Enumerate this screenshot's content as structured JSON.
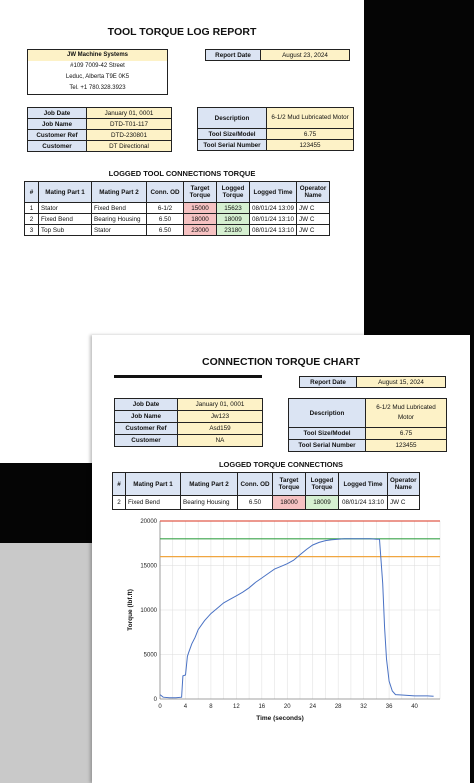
{
  "report1": {
    "title": "TOOL TORQUE LOG REPORT",
    "company": {
      "name": "JW Machine Systems",
      "address1": "#109 7009-42 Street",
      "address2": "Leduc, Alberta T9E 0K5",
      "phone": "Tel. +1 780.328.3923"
    },
    "report_date_label": "Report Date",
    "report_date": "August 23, 2024",
    "job": [
      {
        "label": "Job Date",
        "value": "January 01, 0001"
      },
      {
        "label": "Job Name",
        "value": "DTD-T01-117"
      },
      {
        "label": "Customer Ref",
        "value": "DTD-230801"
      },
      {
        "label": "Customer",
        "value": "DT Directional"
      }
    ],
    "tool": [
      {
        "label": "Description",
        "value": "6-1/2 Mud Lubricated Motor"
      },
      {
        "label": "Tool Size/Model",
        "value": "6.75"
      },
      {
        "label": "Tool Serial Number",
        "value": "123455"
      }
    ],
    "section_title": "LOGGED TOOL CONNECTIONS TORQUE",
    "columns": [
      "#",
      "Mating Part 1",
      "Mating Part 2",
      "Conn. OD",
      "Target Torque",
      "Logged Torque",
      "Logged Time",
      "Operator Name"
    ],
    "rows": [
      [
        "1",
        "Stator",
        "Fixed Bend",
        "6-1/2",
        "15000",
        "15623",
        "08/01/24 13:09",
        "JW C"
      ],
      [
        "2",
        "Fixed Bend",
        "Bearing Housing",
        "6.50",
        "18000",
        "18009",
        "08/01/24 13:10",
        "JW C"
      ],
      [
        "3",
        "Top Sub",
        "Stator",
        "6.50",
        "23000",
        "23180",
        "08/01/24 13:10",
        "JW C"
      ]
    ]
  },
  "report2": {
    "title": "CONNECTION TORQUE CHART",
    "report_date_label": "Report Date",
    "report_date": "August 15, 2024",
    "job": [
      {
        "label": "Job Date",
        "value": "January 01, 0001"
      },
      {
        "label": "Job Name",
        "value": "Jw123"
      },
      {
        "label": "Customer Ref",
        "value": "Asd159"
      },
      {
        "label": "Customer",
        "value": "NA"
      }
    ],
    "tool": [
      {
        "label": "Description",
        "value": "6-1/2 Mud Lubricated Motor"
      },
      {
        "label": "Tool Size/Model",
        "value": "6.75"
      },
      {
        "label": "Tool Serial Number",
        "value": "123455"
      }
    ],
    "section_title": "LOGGED TORQUE CONNECTIONS",
    "columns": [
      "#",
      "Mating Part 1",
      "Mating Part 2",
      "Conn. OD",
      "Target Torque",
      "Logged Torque",
      "Logged Time",
      "Operator Name"
    ],
    "rows": [
      [
        "2",
        "Fixed Bend",
        "Bearing Housing",
        "6.50",
        "18000",
        "18009",
        "08/01/24 13:10",
        "JW C"
      ]
    ]
  },
  "chart_data": {
    "type": "line",
    "title": "",
    "xlabel": "Time (seconds)",
    "ylabel": "Torque (lbf.ft)",
    "xlim": [
      0,
      44
    ],
    "ylim": [
      0,
      20000
    ],
    "xticks": [
      0,
      4,
      8,
      12,
      16,
      20,
      24,
      28,
      32,
      36,
      40
    ],
    "yticks": [
      0,
      5000,
      10000,
      15000,
      20000
    ],
    "grid": true,
    "reference_lines": [
      {
        "value": 20000,
        "color": "#e05a4a"
      },
      {
        "value": 18000,
        "color": "#3aa34a"
      },
      {
        "value": 16000,
        "color": "#f0a640"
      }
    ],
    "series": [
      {
        "color": "#4a72c4",
        "x": [
          0,
          0.5,
          1.5,
          2.5,
          3.4,
          3.6,
          4,
          4.3,
          4.5,
          5,
          5.5,
          6,
          7,
          8,
          9,
          10,
          11,
          12,
          13,
          14,
          15,
          16,
          17,
          18,
          19,
          20,
          21,
          22,
          23,
          24,
          25,
          26,
          27,
          28,
          29,
          30,
          31,
          32,
          33,
          34,
          34.5,
          35,
          35.3,
          35.6,
          36,
          36.5,
          37,
          38,
          40,
          42,
          43
        ],
        "y": [
          500,
          200,
          150,
          150,
          200,
          2600,
          2700,
          4800,
          5200,
          6200,
          6900,
          7800,
          8800,
          9600,
          10200,
          10800,
          11200,
          11600,
          12000,
          12500,
          13100,
          13600,
          14100,
          14600,
          14900,
          15200,
          15600,
          16200,
          16800,
          17300,
          17600,
          17800,
          17900,
          17950,
          18000,
          18009,
          18000,
          18000,
          18000,
          17950,
          17950,
          13000,
          8000,
          4500,
          2000,
          900,
          500,
          450,
          350,
          350,
          300
        ]
      }
    ]
  }
}
